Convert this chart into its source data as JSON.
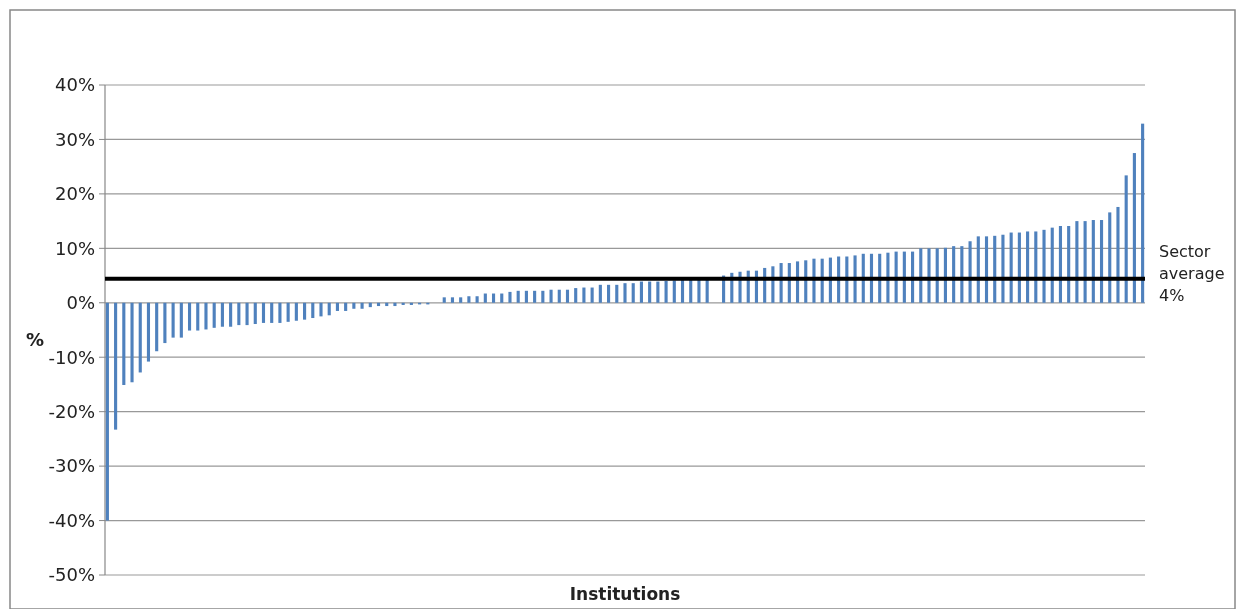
{
  "chart_data": {
    "type": "bar",
    "xlabel": "Institutions",
    "ylabel": "%",
    "categories": [
      null,
      null,
      null,
      null,
      null,
      null,
      null,
      null,
      null,
      null,
      null,
      null,
      null,
      null,
      null,
      null,
      null,
      null,
      null,
      null,
      null,
      null,
      null,
      null,
      null,
      null,
      null,
      null,
      null,
      null,
      null,
      null,
      null,
      null,
      null,
      null,
      null,
      null,
      null,
      null,
      null,
      null,
      null,
      null,
      null,
      null,
      null,
      null,
      null,
      null,
      null,
      null,
      null,
      null,
      null,
      null,
      null,
      null,
      null,
      null,
      null,
      null,
      null,
      null,
      null,
      null,
      null,
      null,
      null,
      null,
      null,
      null,
      null,
      null,
      null,
      null,
      null,
      null,
      null,
      null,
      null,
      null,
      null,
      null,
      null,
      null,
      null,
      null,
      null,
      null,
      null,
      null,
      null,
      null,
      null,
      null,
      null,
      null,
      null,
      null,
      null,
      null,
      null,
      null,
      null,
      null,
      null,
      null,
      null,
      null,
      null,
      null,
      null,
      null,
      null,
      null,
      null,
      null,
      null,
      null,
      null,
      null,
      null,
      null,
      null,
      null,
      null
    ],
    "series": [
      {
        "color": "#4f81bd",
        "values": [
          -40,
          -23.3,
          -15.1,
          -14.6,
          -12.8,
          -10.8,
          -8.9,
          -7.4,
          -6.4,
          -6.4,
          -5.1,
          -5.1,
          -4.9,
          -4.6,
          -4.4,
          -4.4,
          -4.1,
          -4.1,
          -3.9,
          -3.7,
          -3.7,
          -3.7,
          -3.5,
          -3.3,
          -3.1,
          -2.8,
          -2.5,
          -2.3,
          -1.5,
          -1.5,
          -1.1,
          -1.1,
          -0.8,
          -0.6,
          -0.6,
          -0.6,
          -0.4,
          -0.4,
          -0.3,
          -0.3,
          null,
          1.0,
          1.0,
          1.0,
          1.2,
          1.2,
          1.7,
          1.7,
          1.7,
          2.0,
          2.2,
          2.2,
          2.2,
          2.2,
          2.4,
          2.4,
          2.4,
          2.7,
          2.8,
          2.8,
          3.3,
          3.3,
          3.3,
          3.6,
          3.6,
          3.9,
          3.9,
          3.9,
          4.0,
          4.1,
          4.2,
          4.3,
          4.4,
          4.5,
          null,
          5.0,
          5.5,
          5.7,
          5.9,
          5.9,
          6.4,
          6.7,
          7.3,
          7.3,
          7.6,
          7.8,
          8.1,
          8.1,
          8.3,
          8.5,
          8.5,
          8.7,
          9.0,
          9.0,
          9.0,
          9.2,
          9.4,
          9.4,
          9.4,
          10.0,
          10.0,
          10.0,
          10.1,
          10.4,
          10.4,
          11.3,
          12.2,
          12.2,
          12.3,
          12.5,
          12.9,
          12.9,
          13.1,
          13.1,
          13.4,
          13.8,
          14.1,
          14.1,
          15.0,
          15.0,
          15.2,
          15.2,
          16.6,
          17.6,
          23.4,
          27.5,
          32.9
        ]
      }
    ],
    "ylim": [
      -50,
      40
    ],
    "yticks": [
      {
        "value": -50,
        "label": "-50%"
      },
      {
        "value": -40,
        "label": "-40%"
      },
      {
        "value": -30,
        "label": "-30%"
      },
      {
        "value": -20,
        "label": "-20%"
      },
      {
        "value": -10,
        "label": "-10%"
      },
      {
        "value": 0,
        "label": "0%"
      },
      {
        "value": 10,
        "label": "10%"
      },
      {
        "value": 20,
        "label": "20%"
      },
      {
        "value": 30,
        "label": "30%"
      },
      {
        "value": 40,
        "label": "40%"
      }
    ],
    "grid": "y",
    "ref_lines": [
      {
        "axis": "y",
        "value": 4.4,
        "label": "Sector average 4%",
        "color": "#000000"
      }
    ]
  }
}
